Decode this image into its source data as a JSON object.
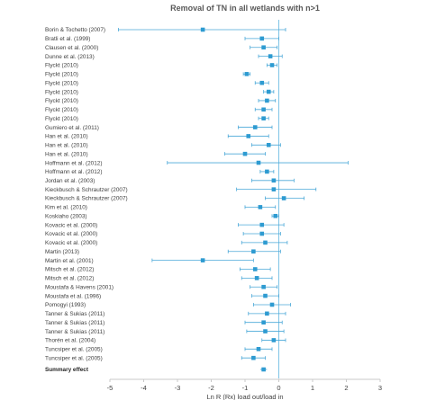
{
  "chart_data": {
    "type": "forest",
    "title": "Removal of TN in all wetlands with n>1",
    "xlabel": "Ln R (Rx) load out/load in",
    "xlim": [
      -5,
      3
    ],
    "xticks": [
      "-5",
      "-4",
      "-3",
      "-2",
      "-1",
      "0",
      "1",
      "2",
      "3"
    ],
    "reference_line": 0,
    "colors": {
      "marker": "#2e9bd1",
      "ci": "#4aa8d8",
      "reference": "#7fc4e6",
      "axis": "#c8c8c8"
    },
    "studies": [
      {
        "label": "Borin & Tochetto (2007)",
        "est": -2.25,
        "lo": -4.75,
        "hi": 0.2
      },
      {
        "label": "Bratli et al. (1999)",
        "est": -0.5,
        "lo": -1.0,
        "hi": 0.0
      },
      {
        "label": "Clausen et al. (2000)",
        "est": -0.45,
        "lo": -0.85,
        "hi": -0.05
      },
      {
        "label": "Dunne et al. (2013)",
        "est": -0.25,
        "lo": -0.6,
        "hi": 0.1
      },
      {
        "label": "Flyckt (2010)",
        "est": -0.2,
        "lo": -0.35,
        "hi": -0.05
      },
      {
        "label": "Flyckt (2010)",
        "est": -0.95,
        "lo": -1.05,
        "hi": -0.85
      },
      {
        "label": "Flyckt (2010)",
        "est": -0.5,
        "lo": -0.7,
        "hi": -0.3
      },
      {
        "label": "Flyckt (2010)",
        "est": -0.3,
        "lo": -0.45,
        "hi": -0.15
      },
      {
        "label": "Flyckt (2010)",
        "est": -0.35,
        "lo": -0.6,
        "hi": -0.1
      },
      {
        "label": "Flyckt (2010)",
        "est": -0.45,
        "lo": -0.7,
        "hi": -0.2
      },
      {
        "label": "Flyckt (2010)",
        "est": -0.45,
        "lo": -0.6,
        "hi": -0.3
      },
      {
        "label": "Gumiero et al. (2011)",
        "est": -0.7,
        "lo": -1.2,
        "hi": -0.2
      },
      {
        "label": "Han et al. (2010)",
        "est": -0.9,
        "lo": -1.5,
        "hi": -0.3
      },
      {
        "label": "Han et al. (2010)",
        "est": -0.3,
        "lo": -0.8,
        "hi": 0.05
      },
      {
        "label": "Han et al. (2010)",
        "est": -1.0,
        "lo": -1.6,
        "hi": -0.4
      },
      {
        "label": "Hoffmann et al. (2012)",
        "est": -0.6,
        "lo": -3.3,
        "hi": 2.05
      },
      {
        "label": "Hoffmann et al. (2012)",
        "est": -0.35,
        "lo": -0.55,
        "hi": -0.15
      },
      {
        "label": "Jordan et al. (2003)",
        "est": -0.15,
        "lo": -0.8,
        "hi": 0.45
      },
      {
        "label": "Kieckbusch & Schrautzer (2007)",
        "est": -0.15,
        "lo": -1.25,
        "hi": 1.1
      },
      {
        "label": "Kieckbusch & Schrautzer (2007)",
        "est": 0.15,
        "lo": -0.4,
        "hi": 0.75
      },
      {
        "label": "Kim et al. (2010)",
        "est": -0.55,
        "lo": -1.0,
        "hi": -0.1
      },
      {
        "label": "Koskiaho (2003)",
        "est": -0.1,
        "lo": -0.2,
        "hi": 0.0
      },
      {
        "label": "Kovacic et al. (2000)",
        "est": -0.5,
        "lo": -1.2,
        "hi": 0.15
      },
      {
        "label": "Kovacic et al. (2000)",
        "est": -0.5,
        "lo": -1.05,
        "hi": 0.05
      },
      {
        "label": "Kovacic et al. (2000)",
        "est": -0.4,
        "lo": -1.1,
        "hi": 0.25
      },
      {
        "label": "Martin (2013)",
        "est": -0.75,
        "lo": -1.5,
        "hi": 0.05
      },
      {
        "label": "Martin et al. (2001)",
        "est": -2.25,
        "lo": -3.75,
        "hi": -0.75
      },
      {
        "label": "Mitsch et al. (2012)",
        "est": -0.7,
        "lo": -1.15,
        "hi": -0.25
      },
      {
        "label": "Mitsch et al. (2012)",
        "est": -0.65,
        "lo": -1.1,
        "hi": -0.2
      },
      {
        "label": "Moustafa & Havens (2001)",
        "est": -0.45,
        "lo": -0.85,
        "hi": -0.05
      },
      {
        "label": "Moustafa et al. (1996)",
        "est": -0.4,
        "lo": -0.8,
        "hi": 0.0
      },
      {
        "label": "Pomogyi (1993)",
        "est": -0.2,
        "lo": -0.75,
        "hi": 0.35
      },
      {
        "label": "Tanner & Sukias (2011)",
        "est": -0.35,
        "lo": -0.9,
        "hi": 0.2
      },
      {
        "label": "Tanner & Sukias (2011)",
        "est": -0.45,
        "lo": -1.0,
        "hi": 0.1
      },
      {
        "label": "Tanner & Sukias (2011)",
        "est": -0.4,
        "lo": -0.95,
        "hi": 0.15
      },
      {
        "label": "Thorén et al. (2004)",
        "est": -0.15,
        "lo": -0.5,
        "hi": 0.2
      },
      {
        "label": "Tuncsiper et al. (2005)",
        "est": -0.6,
        "lo": -1.0,
        "hi": -0.2
      },
      {
        "label": "Tuncsiper et al. (2005)",
        "est": -0.75,
        "lo": -1.1,
        "hi": -0.4
      }
    ],
    "summary": {
      "label": "Summary effect",
      "est": -0.45,
      "lo": -0.55,
      "hi": -0.35
    }
  }
}
